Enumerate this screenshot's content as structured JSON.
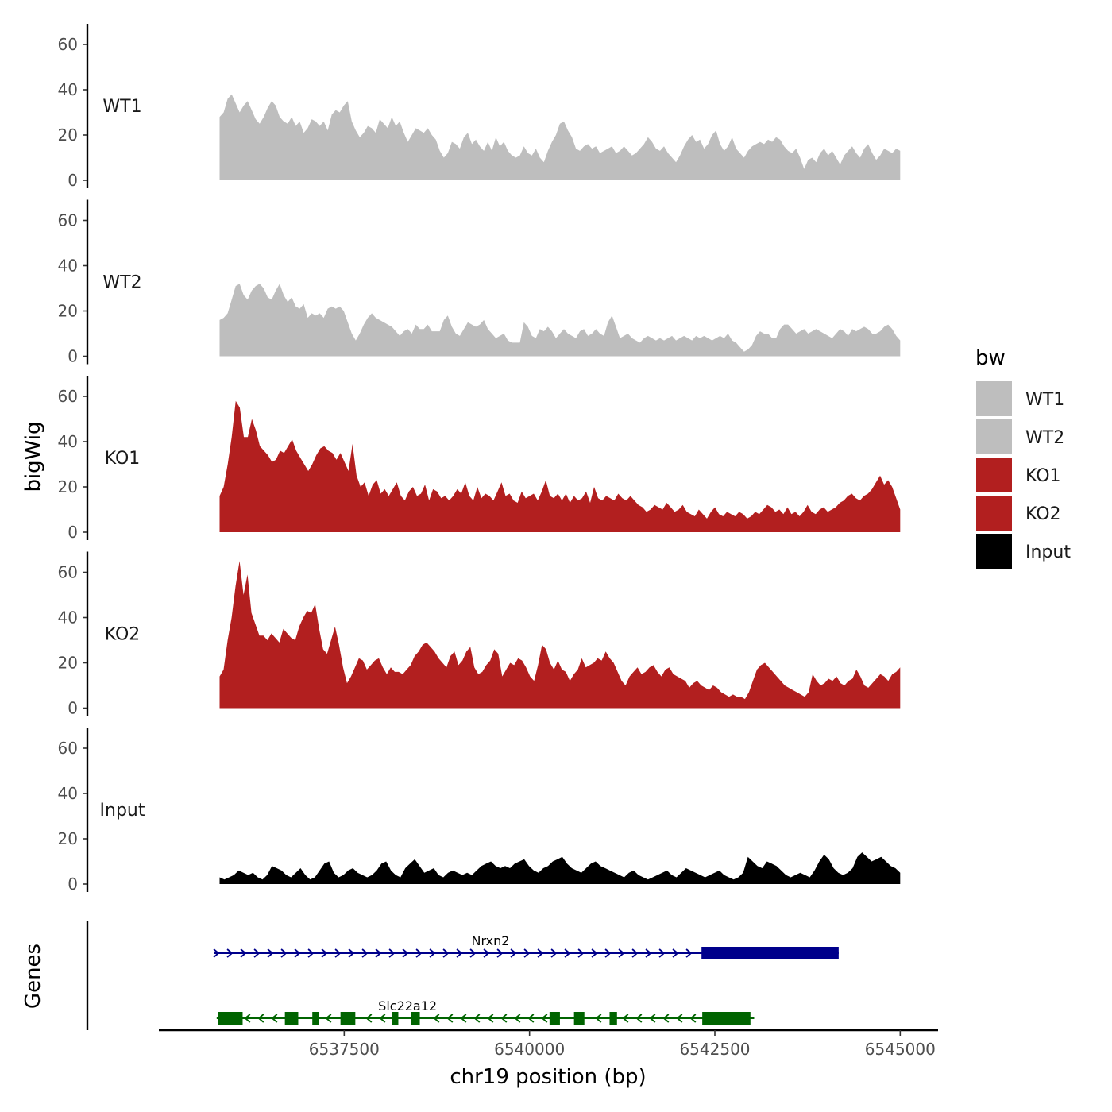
{
  "chart_data": {
    "type": "area",
    "xlabel": "chr19 position (bp)",
    "ylabel": "bigWig",
    "genes_panel_label": "Genes",
    "xlim": [
      6535000,
      6545500
    ],
    "x_ticks": [
      6537500,
      6540000,
      6542500,
      6545000
    ],
    "x_tick_labels": [
      "6537500",
      "6540000",
      "6542500",
      "6545000"
    ],
    "ylim": [
      0,
      68
    ],
    "y_ticks": [
      0,
      20,
      40,
      60
    ],
    "y_tick_labels": [
      "0",
      "20",
      "40",
      "60"
    ],
    "data_range": [
      6535820,
      6545000
    ],
    "legend": {
      "title": "bw",
      "placement": "right",
      "entries": [
        {
          "label": "WT1",
          "color": "#bebebe"
        },
        {
          "label": "WT2",
          "color": "#bebebe"
        },
        {
          "label": "KO1",
          "color": "#b21f1f"
        },
        {
          "label": "KO2",
          "color": "#b21f1f"
        },
        {
          "label": "Input",
          "color": "#000000"
        }
      ]
    },
    "series": [
      {
        "name": "WT1",
        "color": "#bebebe",
        "values": [
          28,
          30,
          36,
          38,
          34,
          30,
          33,
          35,
          31,
          27,
          25,
          28,
          32,
          35,
          33,
          28,
          26,
          25,
          28,
          24,
          26,
          21,
          23,
          27,
          26,
          24,
          26,
          22,
          29,
          31,
          30,
          33,
          35,
          26,
          22,
          19,
          21,
          24,
          23,
          21,
          27,
          25,
          23,
          28,
          24,
          26,
          21,
          17,
          20,
          23,
          22,
          21,
          23,
          20,
          18,
          13,
          10,
          12,
          17,
          16,
          14,
          19,
          21,
          16,
          18,
          15,
          13,
          17,
          13,
          19,
          15,
          17,
          13,
          11,
          10,
          11,
          15,
          12,
          11,
          14,
          10,
          8,
          13,
          17,
          20,
          25,
          26,
          22,
          19,
          14,
          13,
          15,
          16,
          14,
          15,
          12,
          13,
          14,
          15,
          12,
          13,
          15,
          13,
          11,
          12,
          14,
          16,
          19,
          17,
          14,
          13,
          15,
          12,
          10,
          8,
          11,
          15,
          18,
          20,
          17,
          18,
          14,
          16,
          20,
          22,
          16,
          13,
          15,
          19,
          14,
          12,
          10,
          13,
          15,
          16,
          17,
          16,
          18,
          17,
          19,
          18,
          15,
          13,
          12,
          14,
          10,
          5,
          9,
          10,
          8,
          12,
          14,
          11,
          13,
          10,
          7,
          11,
          13,
          15,
          12,
          10,
          14,
          16,
          12,
          9,
          11,
          14,
          13,
          12,
          14,
          13
        ]
      },
      {
        "name": "WT2",
        "color": "#bebebe",
        "values": [
          16,
          17,
          19,
          25,
          31,
          32,
          27,
          25,
          29,
          31,
          32,
          30,
          26,
          25,
          29,
          32,
          27,
          24,
          26,
          22,
          21,
          23,
          17,
          19,
          18,
          19,
          17,
          21,
          22,
          21,
          22,
          20,
          15,
          10,
          7,
          10,
          14,
          17,
          19,
          17,
          16,
          15,
          14,
          13,
          11,
          9,
          11,
          12,
          10,
          14,
          12,
          12,
          14,
          11,
          11,
          11,
          16,
          18,
          13,
          10,
          9,
          12,
          15,
          14,
          13,
          14,
          16,
          12,
          10,
          8,
          9,
          10,
          7,
          6,
          6,
          6,
          15,
          13,
          9,
          8,
          12,
          11,
          13,
          11,
          8,
          10,
          12,
          10,
          9,
          8,
          11,
          12,
          9,
          10,
          12,
          10,
          9,
          15,
          18,
          13,
          8,
          9,
          10,
          8,
          7,
          6,
          8,
          9,
          8,
          7,
          8,
          7,
          8,
          9,
          7,
          8,
          9,
          8,
          7,
          9,
          8,
          9,
          8,
          7,
          8,
          9,
          8,
          10,
          7,
          6,
          4,
          2,
          3,
          5,
          9,
          11,
          10,
          10,
          8,
          8,
          12,
          14,
          14,
          12,
          10,
          11,
          12,
          10,
          11,
          12,
          11,
          10,
          9,
          8,
          10,
          12,
          11,
          9,
          12,
          11,
          12,
          13,
          12,
          10,
          10,
          11,
          13,
          14,
          12,
          9,
          7
        ]
      },
      {
        "name": "KO1",
        "color": "#b21f1f",
        "values": [
          16,
          20,
          30,
          42,
          58,
          55,
          42,
          42,
          50,
          45,
          38,
          36,
          34,
          31,
          32,
          36,
          35,
          38,
          41,
          36,
          33,
          30,
          27,
          30,
          34,
          37,
          38,
          36,
          35,
          32,
          35,
          31,
          27,
          39,
          25,
          20,
          22,
          16,
          21,
          23,
          17,
          19,
          16,
          19,
          22,
          16,
          14,
          18,
          20,
          16,
          17,
          21,
          14,
          19,
          18,
          15,
          16,
          14,
          16,
          19,
          17,
          22,
          16,
          14,
          20,
          15,
          17,
          16,
          14,
          18,
          22,
          16,
          17,
          14,
          13,
          18,
          15,
          16,
          17,
          14,
          18,
          23,
          16,
          15,
          17,
          14,
          17,
          13,
          16,
          14,
          15,
          18,
          13,
          20,
          15,
          14,
          16,
          15,
          14,
          17,
          15,
          14,
          16,
          14,
          12,
          11,
          9,
          10,
          12,
          11,
          10,
          13,
          11,
          9,
          10,
          12,
          9,
          8,
          7,
          10,
          8,
          6,
          9,
          11,
          8,
          7,
          9,
          8,
          7,
          9,
          8,
          6,
          7,
          9,
          8,
          10,
          12,
          11,
          9,
          10,
          8,
          11,
          8,
          9,
          7,
          9,
          12,
          9,
          8,
          10,
          11,
          9,
          10,
          11,
          13,
          14,
          16,
          17,
          15,
          14,
          16,
          17,
          19,
          22,
          25,
          21,
          23,
          20,
          15,
          10
        ]
      },
      {
        "name": "KO2",
        "color": "#b21f1f",
        "values": [
          14,
          17,
          30,
          40,
          54,
          65,
          50,
          59,
          42,
          37,
          32,
          32,
          30,
          33,
          31,
          29,
          35,
          33,
          31,
          30,
          36,
          40,
          43,
          42,
          46,
          35,
          26,
          24,
          30,
          36,
          28,
          18,
          11,
          14,
          18,
          22,
          21,
          17,
          19,
          21,
          22,
          18,
          15,
          18,
          16,
          16,
          15,
          17,
          19,
          23,
          25,
          28,
          29,
          27,
          25,
          22,
          20,
          18,
          23,
          25,
          19,
          21,
          25,
          27,
          18,
          15,
          16,
          19,
          21,
          26,
          24,
          14,
          17,
          20,
          19,
          22,
          21,
          18,
          14,
          12,
          19,
          28,
          26,
          20,
          17,
          21,
          17,
          16,
          12,
          15,
          17,
          22,
          18,
          19,
          20,
          22,
          21,
          25,
          22,
          20,
          16,
          12,
          10,
          14,
          16,
          18,
          15,
          16,
          18,
          19,
          16,
          14,
          17,
          18,
          15,
          14,
          13,
          12,
          9,
          11,
          12,
          10,
          9,
          8,
          10,
          9,
          7,
          6,
          5,
          6,
          5,
          5,
          4,
          7,
          12,
          17,
          19,
          20,
          18,
          16,
          14,
          12,
          10,
          9,
          8,
          7,
          6,
          5,
          7,
          15,
          12,
          10,
          11,
          13,
          12,
          14,
          11,
          10,
          12,
          13,
          17,
          14,
          10,
          9,
          11,
          13,
          15,
          14,
          12,
          15,
          16,
          18
        ]
      },
      {
        "name": "Input",
        "color": "#000000",
        "values": [
          3,
          2,
          3,
          4,
          6,
          5,
          4,
          5,
          3,
          2,
          4,
          8,
          7,
          6,
          4,
          3,
          5,
          7,
          4,
          2,
          3,
          6,
          9,
          10,
          5,
          3,
          4,
          6,
          7,
          5,
          4,
          3,
          4,
          6,
          9,
          10,
          6,
          4,
          3,
          7,
          9,
          11,
          8,
          5,
          6,
          7,
          4,
          3,
          5,
          6,
          5,
          4,
          5,
          4,
          6,
          8,
          9,
          10,
          8,
          7,
          8,
          7,
          9,
          10,
          11,
          8,
          6,
          5,
          7,
          8,
          10,
          11,
          12,
          9,
          7,
          6,
          5,
          7,
          9,
          10,
          8,
          7,
          6,
          5,
          4,
          3,
          5,
          6,
          4,
          3,
          2,
          3,
          4,
          5,
          6,
          4,
          3,
          5,
          7,
          6,
          5,
          4,
          3,
          4,
          5,
          6,
          4,
          3,
          2,
          3,
          5,
          12,
          10,
          8,
          7,
          10,
          9,
          8,
          6,
          4,
          3,
          4,
          5,
          4,
          3,
          6,
          10,
          13,
          11,
          7,
          5,
          4,
          5,
          7,
          12,
          14,
          12,
          10,
          11,
          12,
          10,
          8,
          7,
          5
        ]
      }
    ],
    "genes": [
      {
        "name": "Nrxn2",
        "color": "#00008b",
        "strand": "+",
        "start": 6535740,
        "end": 6544170,
        "exons": [
          [
            6542320,
            6544170
          ]
        ]
      },
      {
        "name": "Slc22a12",
        "color": "#006400",
        "strand": "-",
        "start": 6535780,
        "end": 6543030,
        "exons": [
          [
            6535800,
            6536130
          ],
          [
            6536700,
            6536880
          ],
          [
            6537070,
            6537160
          ],
          [
            6537450,
            6537650
          ],
          [
            6538150,
            6538230
          ],
          [
            6538400,
            6538520
          ],
          [
            6540270,
            6540410
          ],
          [
            6540600,
            6540740
          ],
          [
            6541080,
            6541180
          ],
          [
            6542330,
            6542980
          ]
        ]
      }
    ]
  }
}
